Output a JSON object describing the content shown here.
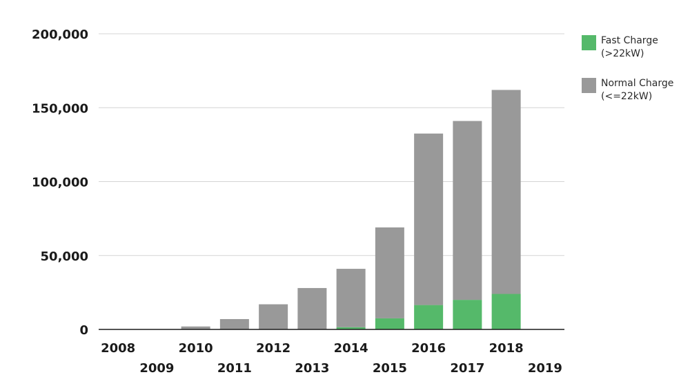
{
  "chart_data": {
    "type": "bar",
    "stacked": true,
    "categories": [
      "2008",
      "2009",
      "2010",
      "2011",
      "2012",
      "2013",
      "2014",
      "2015",
      "2016",
      "2017",
      "2018",
      "2019"
    ],
    "series": [
      {
        "name": "Fast Charge (>22kW)",
        "legend_lines": [
          "Fast Charge",
          "(>22kW)"
        ],
        "color": "#55b96a",
        "values": [
          0,
          0,
          0,
          0,
          0,
          0,
          1500,
          7500,
          16500,
          20000,
          24000,
          0
        ]
      },
      {
        "name": "Normal Charge (<=22kW)",
        "legend_lines": [
          "Normal Charge",
          "(<=22kW)"
        ],
        "color": "#999999",
        "values": [
          0,
          0,
          2000,
          7000,
          17000,
          28000,
          39500,
          61500,
          116000,
          121000,
          138000,
          0
        ]
      }
    ],
    "y_ticks": [
      0,
      50000,
      100000,
      150000,
      200000
    ],
    "y_tick_labels": [
      "0",
      "50,000",
      "100,000",
      "150,000",
      "200,000"
    ],
    "ylim": [
      0,
      200000
    ],
    "grid": true,
    "legend_position": "top-right",
    "title": "",
    "xlabel": "",
    "ylabel": ""
  }
}
